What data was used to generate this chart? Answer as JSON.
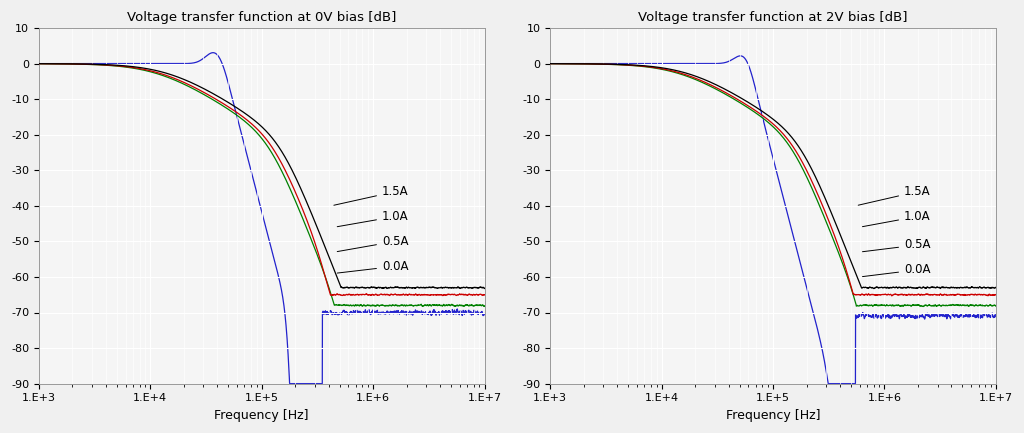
{
  "title_left": "Voltage transfer function at 0V bias [dB]",
  "title_right": "Voltage transfer function at 2V bias [dB]",
  "xlabel": "Frequency [Hz]",
  "ylim": [
    -90,
    10
  ],
  "yticks": [
    -90,
    -80,
    -70,
    -60,
    -50,
    -40,
    -30,
    -20,
    -10,
    0,
    10
  ],
  "colors": {
    "0.0A": "#000000",
    "0.5A": "#008000",
    "1.0A": "#cc0000",
    "1.5A": "#2222cc"
  },
  "line_width": 0.9,
  "plot_bg": "#f5f5f5",
  "fig_bg": "#f0f0f0",
  "grid_color": "#ffffff"
}
